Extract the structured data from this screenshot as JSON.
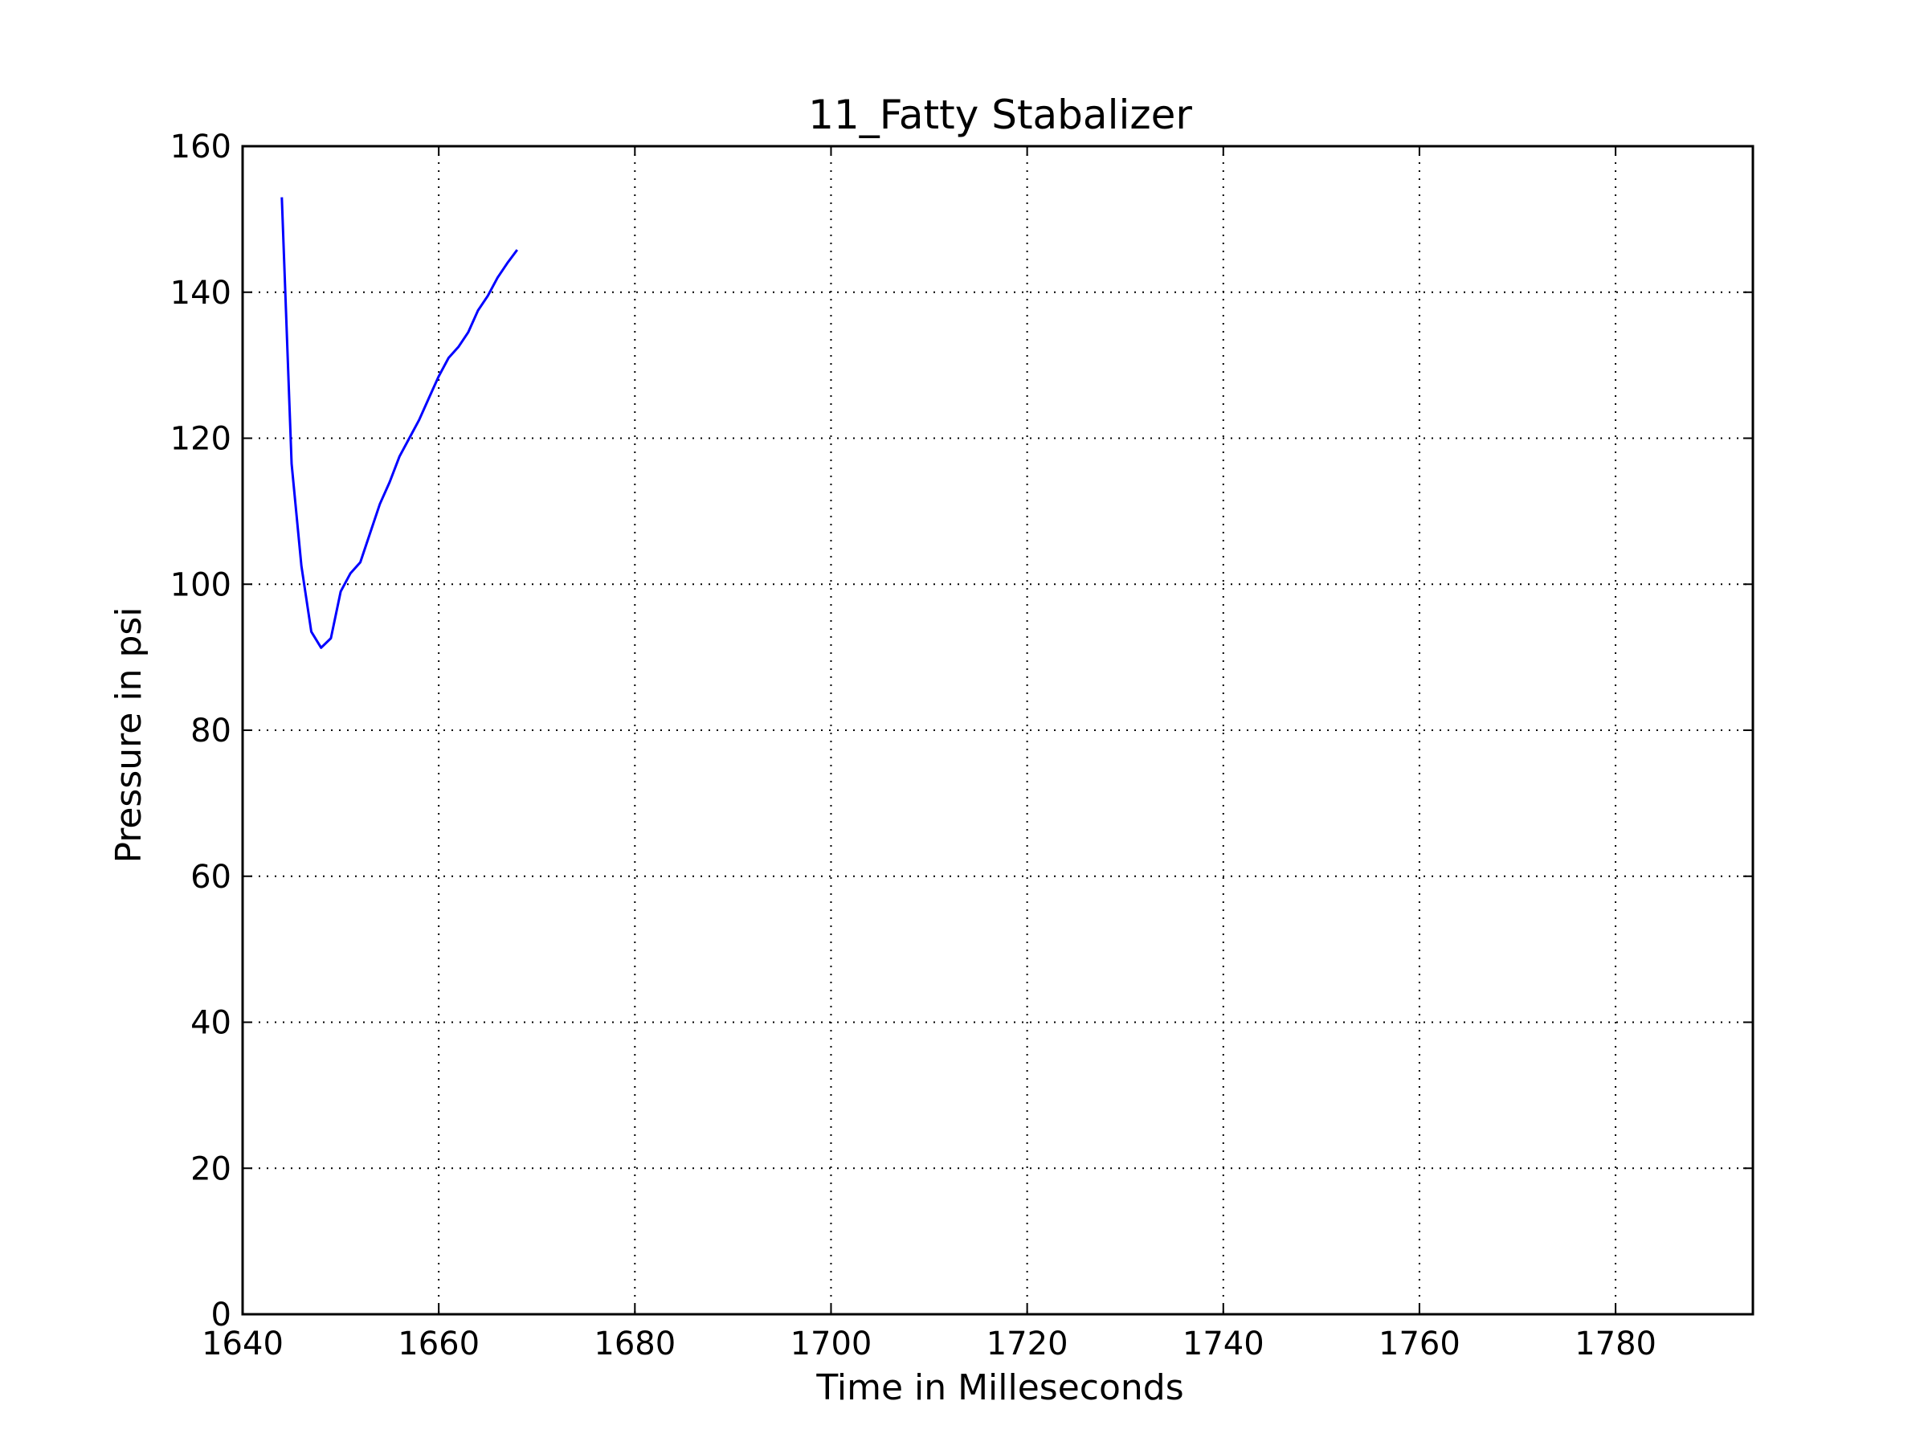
{
  "chart_data": {
    "type": "line",
    "title": "11_Fatty Stabalizer",
    "xlabel": "Time in Milleseconds",
    "ylabel": "Pressure in psi",
    "xlim": [
      1640,
      1794
    ],
    "ylim": [
      0,
      160
    ],
    "xticks": [
      1640,
      1660,
      1680,
      1700,
      1720,
      1740,
      1760,
      1780
    ],
    "yticks": [
      0,
      20,
      40,
      60,
      80,
      100,
      120,
      140,
      160
    ],
    "grid": true,
    "line_color": "#0000ff",
    "series": [
      {
        "x": [
          1644,
          1645,
          1646,
          1647,
          1648,
          1649,
          1650,
          1651,
          1652,
          1653,
          1654,
          1655,
          1656,
          1657,
          1658,
          1659,
          1660,
          1661,
          1662,
          1663,
          1664,
          1665,
          1666,
          1667,
          1668
        ],
        "y": [
          153,
          116.5,
          102.5,
          93.5,
          91.3,
          92.6,
          99,
          101.5,
          103,
          107,
          111,
          114,
          117.5,
          120,
          122.5,
          125.5,
          128.5,
          131,
          132.5,
          134.5,
          137.5,
          139.5,
          142,
          144,
          145.8
        ]
      }
    ]
  }
}
